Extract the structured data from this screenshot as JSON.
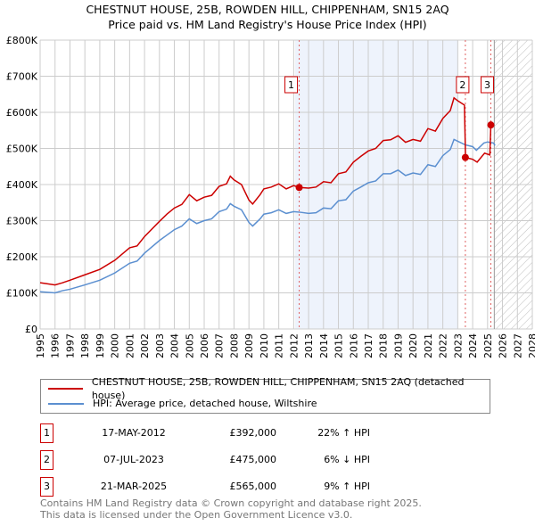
{
  "chart_data": {
    "type": "line",
    "title": "CHESTNUT HOUSE, 25B, ROWDEN HILL, CHIPPENHAM, SN15 2AQ",
    "subtitle": "Price paid vs. HM Land Registry's House Price Index (HPI)",
    "xlim": [
      1995,
      2028
    ],
    "ylim": [
      0,
      800000
    ],
    "x_ticks": [
      "1995",
      "1996",
      "1997",
      "1998",
      "1999",
      "2000",
      "2001",
      "2002",
      "2003",
      "2004",
      "2005",
      "2006",
      "2007",
      "2008",
      "2009",
      "2010",
      "2011",
      "2012",
      "2013",
      "2014",
      "2015",
      "2016",
      "2017",
      "2018",
      "2019",
      "2020",
      "2021",
      "2022",
      "2023",
      "2024",
      "2025",
      "2026",
      "2027",
      "2028"
    ],
    "y_ticks": [
      {
        "v": 0,
        "label": "£0"
      },
      {
        "v": 100000,
        "label": "£100K"
      },
      {
        "v": 200000,
        "label": "£200K"
      },
      {
        "v": 300000,
        "label": "£300K"
      },
      {
        "v": 400000,
        "label": "£400K"
      },
      {
        "v": 500000,
        "label": "£500K"
      },
      {
        "v": 600000,
        "label": "£600K"
      },
      {
        "v": 700000,
        "label": "£700K"
      },
      {
        "v": 800000,
        "label": "£800K"
      }
    ],
    "grid": true,
    "shaded_range": [
      2012.1,
      2023.0
    ],
    "forecast_hatch_from": 2025.45,
    "series": [
      {
        "name": "CHESTNUT HOUSE, 25B, ROWDEN HILL, CHIPPENHAM, SN15 2AQ (detached house)",
        "color": "#cc0000",
        "x": [
          1995,
          1996,
          1996.5,
          1997,
          1998,
          1999,
          2000,
          2001,
          2001.5,
          2002,
          2003,
          2003.5,
          2004,
          2004.5,
          2005,
          2005.5,
          2006,
          2006.5,
          2007,
          2007.5,
          2007.75,
          2008,
          2008.5,
          2009,
          2009.25,
          2009.75,
          2010,
          2010.5,
          2011,
          2011.5,
          2012,
          2012.37,
          2013,
          2013.5,
          2014,
          2014.5,
          2015,
          2015.5,
          2016,
          2016.5,
          2017,
          2017.5,
          2018,
          2018.5,
          2019,
          2019.5,
          2020,
          2020.5,
          2021,
          2021.5,
          2022,
          2022.5,
          2022.75,
          2023,
          2023.45,
          2023.52,
          2024,
          2024.3,
          2024.8,
          2025.15,
          2025.22
        ],
        "y": [
          128000,
          122000,
          128000,
          135000,
          150000,
          165000,
          190000,
          225000,
          230000,
          256000,
          298000,
          318000,
          335000,
          345000,
          372000,
          355000,
          365000,
          370000,
          395000,
          402000,
          423000,
          413000,
          400000,
          357000,
          346000,
          372000,
          388000,
          393000,
          402000,
          388000,
          397000,
          392000,
          390000,
          393000,
          408000,
          405000,
          430000,
          435000,
          462000,
          478000,
          493000,
          500000,
          522000,
          524000,
          535000,
          517000,
          525000,
          520000,
          555000,
          548000,
          583000,
          605000,
          640000,
          632000,
          620000,
          475000,
          470000,
          462000,
          487000,
          482000,
          565000
        ]
      },
      {
        "name": "HPI: Average price, detached house, Wiltshire",
        "color": "#5b8fd0",
        "x": [
          1995,
          1996,
          1996.5,
          1997,
          1998,
          1999,
          2000,
          2001,
          2001.5,
          2002,
          2003,
          2003.5,
          2004,
          2004.5,
          2005,
          2005.5,
          2006,
          2006.5,
          2007,
          2007.5,
          2007.75,
          2008,
          2008.5,
          2009,
          2009.25,
          2009.75,
          2010,
          2010.5,
          2011,
          2011.5,
          2012,
          2012.5,
          2013,
          2013.5,
          2014,
          2014.5,
          2015,
          2015.5,
          2016,
          2016.5,
          2017,
          2017.5,
          2018,
          2018.5,
          2019,
          2019.5,
          2020,
          2020.5,
          2021,
          2021.5,
          2022,
          2022.5,
          2022.75,
          2023,
          2023.5,
          2024,
          2024.25,
          2024.75,
          2025,
          2025.4,
          2025.5
        ],
        "y": [
          103000,
          100000,
          106000,
          110000,
          122000,
          135000,
          155000,
          182000,
          188000,
          210000,
          245000,
          260000,
          275000,
          285000,
          305000,
          292000,
          300000,
          305000,
          325000,
          332000,
          347000,
          340000,
          330000,
          295000,
          285000,
          305000,
          318000,
          322000,
          330000,
          320000,
          325000,
          323000,
          320000,
          322000,
          335000,
          333000,
          355000,
          358000,
          382000,
          393000,
          405000,
          410000,
          430000,
          430000,
          440000,
          425000,
          432000,
          428000,
          455000,
          450000,
          480000,
          497000,
          525000,
          520000,
          510000,
          505000,
          495000,
          515000,
          518000,
          515000,
          508000
        ]
      }
    ],
    "sales": [
      {
        "n": "1",
        "x": 2012.37,
        "y": 392000,
        "date": "17-MAY-2012",
        "price": "£392,000",
        "hpi": "22% ↑ HPI"
      },
      {
        "n": "2",
        "x": 2023.51,
        "y": 475000,
        "date": "07-JUL-2023",
        "price": "£475,000",
        "hpi": "6% ↓ HPI"
      },
      {
        "n": "3",
        "x": 2025.22,
        "y": 565000,
        "date": "21-MAR-2025",
        "price": "£565,000",
        "hpi": "9% ↑ HPI"
      }
    ]
  },
  "footer": [
    "Contains HM Land Registry data © Crown copyright and database right 2025.",
    "This data is licensed under the Open Government Licence v3.0."
  ]
}
